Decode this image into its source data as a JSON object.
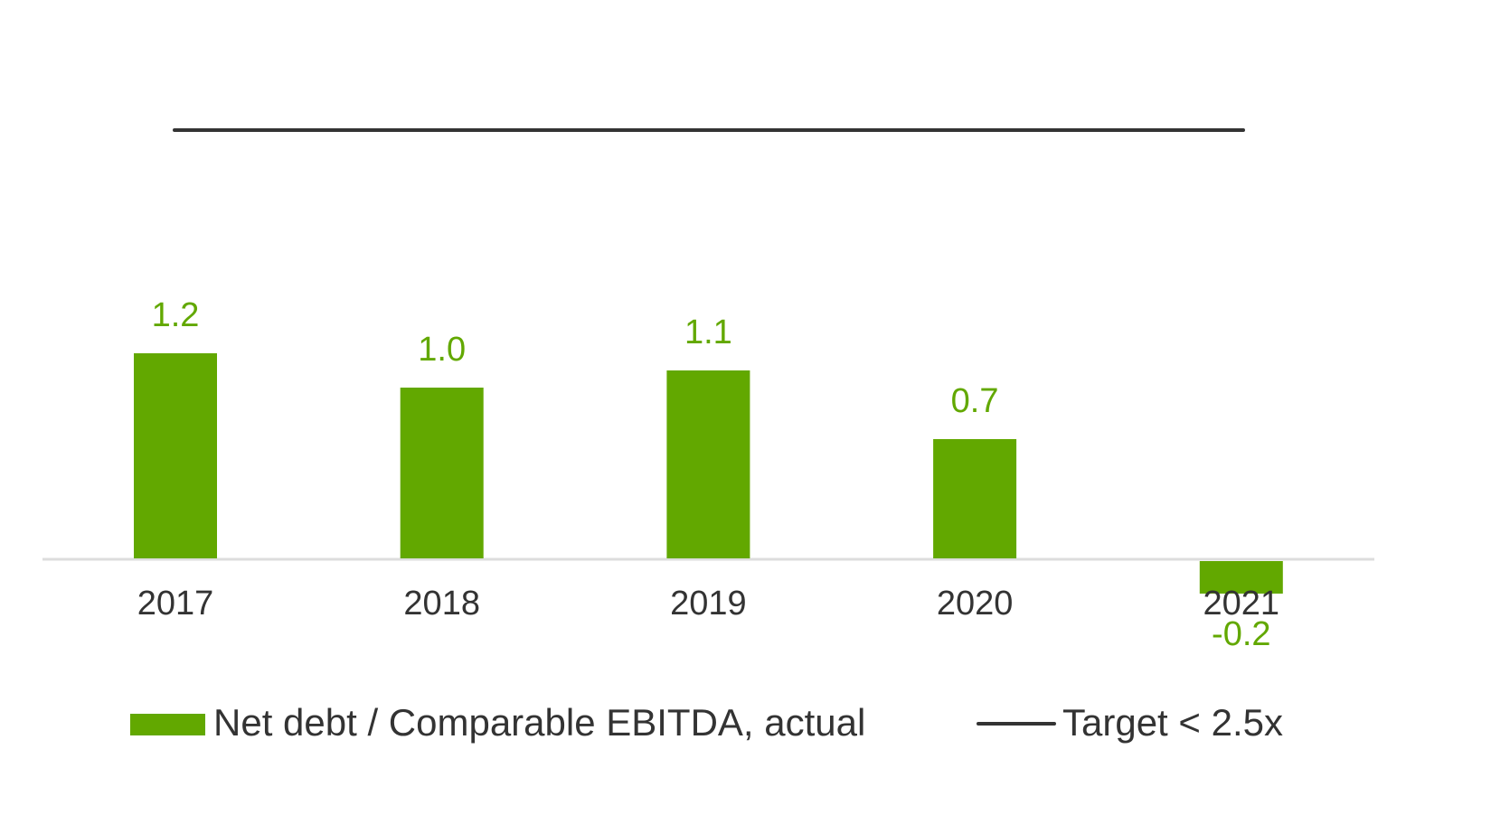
{
  "chart_data": {
    "type": "bar",
    "categories": [
      "2017",
      "2018",
      "2019",
      "2020",
      "2021"
    ],
    "series": [
      {
        "name": "Net debt / Comparable EBITDA, actual",
        "type": "bar",
        "values": [
          1.2,
          1.0,
          1.1,
          0.7,
          -0.2
        ],
        "labels": [
          "1.2",
          "1.0",
          "1.1",
          "0.7",
          "-0.2"
        ],
        "color": "#62a800"
      },
      {
        "name": "Target < 2.5x",
        "type": "line",
        "value": 2.5,
        "color": "#333333"
      }
    ],
    "title": "",
    "xlabel": "",
    "ylabel": "",
    "ylim": [
      -0.2,
      2.5
    ],
    "grid": false,
    "legend": "bottom",
    "axis_color": "#dddddd"
  }
}
